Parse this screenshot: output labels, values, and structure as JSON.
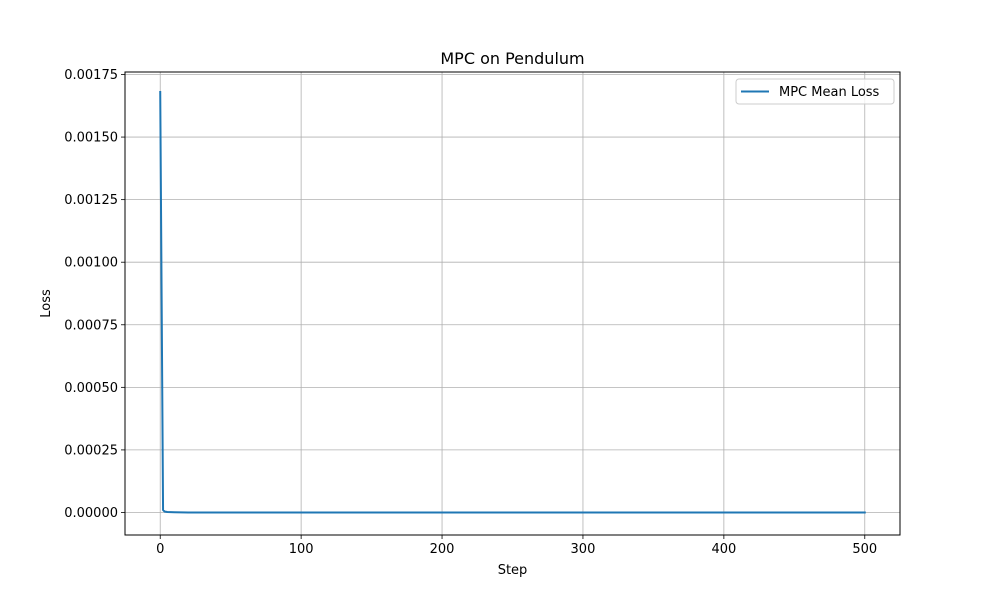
{
  "chart_data": {
    "type": "line",
    "title": "MPC on Pendulum",
    "xlabel": "Step",
    "ylabel": "Loss",
    "xlim": [
      -25,
      525
    ],
    "ylim": [
      -9e-05,
      0.00176
    ],
    "x_ticks": [
      0,
      100,
      200,
      300,
      400,
      500
    ],
    "x_tick_labels": [
      "0",
      "100",
      "200",
      "300",
      "400",
      "500"
    ],
    "y_ticks": [
      0,
      0.00025,
      0.0005,
      0.00075,
      0.001,
      0.00125,
      0.0015,
      0.00175
    ],
    "y_tick_labels": [
      "0.00000",
      "0.00025",
      "0.00050",
      "0.00075",
      "0.00100",
      "0.00125",
      "0.00150",
      "0.00175"
    ],
    "grid": true,
    "legend_position": "upper right",
    "series": [
      {
        "name": "MPC Mean Loss",
        "color": "#1f77b4",
        "x": [
          0,
          1,
          2,
          3,
          5,
          10,
          20,
          50,
          100,
          200,
          300,
          400,
          500
        ],
        "y": [
          0.00168,
          0.00085,
          1e-05,
          4e-06,
          2e-06,
          1e-06,
          0,
          0,
          0,
          0,
          0,
          0,
          0
        ]
      }
    ]
  }
}
